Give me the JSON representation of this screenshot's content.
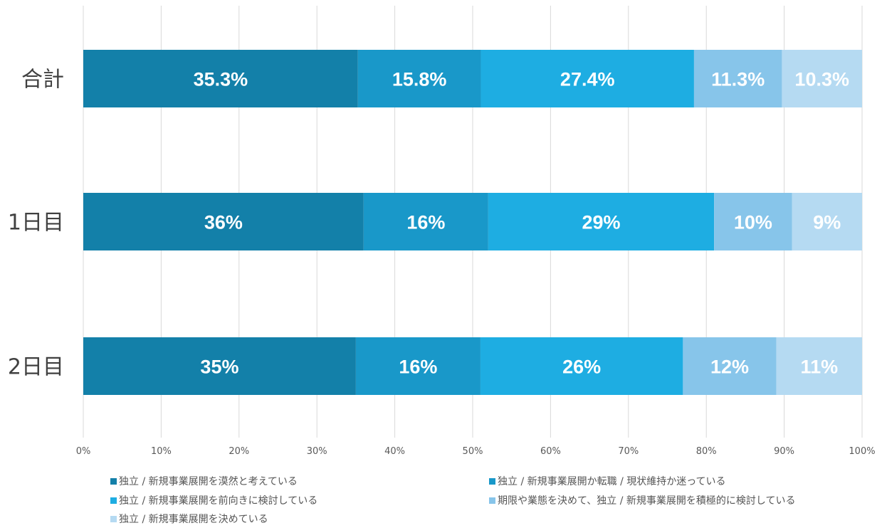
{
  "chart_data": {
    "type": "bar",
    "orientation": "horizontal",
    "stacked": true,
    "percent_stacked": true,
    "categories": [
      "合計",
      "1日目",
      "2日目"
    ],
    "series": [
      {
        "name": "独立 / 新規事業展開を漠然と考えている",
        "color": "#1380A9",
        "values": [
          35.3,
          36,
          35
        ],
        "labels": [
          "35.3%",
          "36%",
          "35%"
        ]
      },
      {
        "name": "独立 / 新規事業展開か転職 / 現状維持か迷っている",
        "color": "#1998C9",
        "values": [
          15.8,
          16,
          16
        ],
        "labels": [
          "15.8%",
          "16%",
          "16%"
        ]
      },
      {
        "name": "独立 / 新規事業展開を前向きに検討している",
        "color": "#1EADE2",
        "values": [
          27.4,
          29,
          26
        ],
        "labels": [
          "27.4%",
          "29%",
          "26%"
        ]
      },
      {
        "name": "期限や業態を決めて、独立 / 新規事業展開を積極的に検討している",
        "color": "#87C5EA",
        "values": [
          11.3,
          10,
          12
        ],
        "labels": [
          "11.3%",
          "10%",
          "12%"
        ]
      },
      {
        "name": "独立 / 新規事業展開を決めている",
        "color": "#B5DAF2",
        "values": [
          10.3,
          9,
          11
        ],
        "labels": [
          "10.3%",
          "9%",
          "11%"
        ]
      }
    ],
    "xlim": [
      0,
      100
    ],
    "x_ticks": [
      "0%",
      "10%",
      "20%",
      "30%",
      "40%",
      "50%",
      "60%",
      "70%",
      "80%",
      "90%",
      "100%"
    ],
    "grid": "vertical",
    "legend_position": "bottom"
  }
}
